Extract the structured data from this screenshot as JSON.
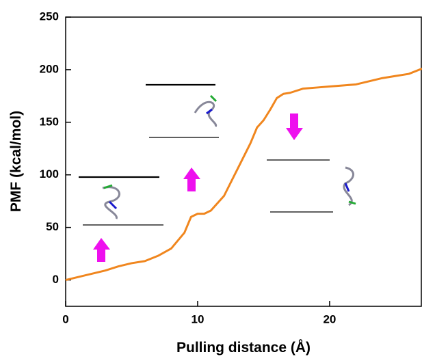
{
  "chart_data": {
    "type": "line",
    "xlabel": "Pulling distance (Å)",
    "ylabel": "PMF (kcal/mol)",
    "x": [
      0,
      1,
      2,
      3,
      4,
      5,
      6,
      7,
      8,
      9,
      9.5,
      10,
      10.5,
      11,
      12,
      13,
      14,
      14.5,
      15,
      15.5,
      16,
      16.5,
      17,
      18,
      19,
      20,
      21,
      22,
      23,
      24,
      25,
      26,
      27
    ],
    "series": [
      {
        "color": "#f0861e",
        "values": [
          0,
          3,
          6,
          9,
          13,
          16,
          18,
          23,
          30,
          45,
          60,
          63,
          63,
          66,
          80,
          105,
          130,
          145,
          152,
          162,
          173,
          177,
          178,
          182,
          183,
          184,
          185,
          186,
          189,
          192,
          194,
          196,
          201
        ]
      }
    ],
    "xlim": [
      0,
      27
    ],
    "xticks": [
      0,
      10,
      20
    ],
    "ylim": [
      -25,
      250
    ],
    "yticks": [
      0,
      50,
      100,
      150,
      200,
      250
    ]
  }
}
